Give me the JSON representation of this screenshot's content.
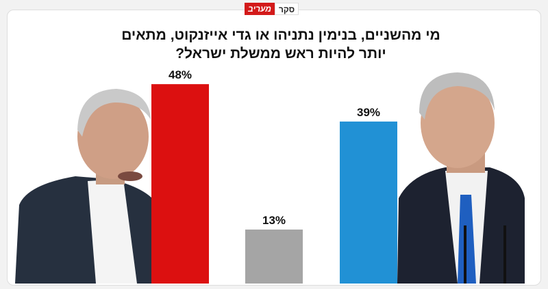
{
  "badge": {
    "label": "סקר",
    "brand": "מעריב"
  },
  "chart_data": {
    "type": "bar",
    "title": "מי מהשניים, בנימין נתניהו או גדי אייזנקוט, מתאים יותר להיות ראש ממשלת ישראל?",
    "categories": [
      null,
      null,
      null
    ],
    "values": [
      48,
      13,
      39
    ],
    "value_labels": [
      "48%",
      "13%",
      "39%"
    ],
    "colors": [
      "#dc1010",
      "#a5a5a5",
      "#2191d5"
    ]
  }
}
